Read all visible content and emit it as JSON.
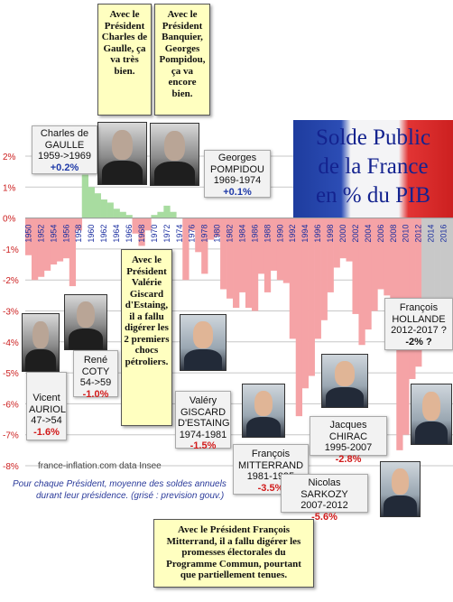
{
  "title_lines": [
    "Solde Public",
    "de la France",
    "en % du PIB"
  ],
  "source": "france-inflation.com  data Insee",
  "note_lines": [
    "Pour chaque Président, moyenne des soldes annuels",
    "durant leur présidence. (grisé : prevision gouv.)"
  ],
  "colors": {
    "positive": "#a8dca0",
    "negative": "#f5a3a6",
    "forecast": "#c8c8c8",
    "grid": "#c7c7c7",
    "axis_labels": "#cc2020",
    "year_labels": "#1b2fa0"
  },
  "yellow_notes": [
    "Avec le Président Charles de Gaulle, ça va très bien.",
    "Avec le Président Banquier, Georges Pompidou, ça va encore bien.",
    "Avec le Président Valérie Giscard d'Estaing, il a fallu digérer les 2 premiers chocs pétroliers.",
    "Avec le Président François Mitterrand, il a fallu digérer les promesses électorales du Programme Commun, pourtant que partiellement tenues."
  ],
  "presidents": [
    {
      "name_lines": [
        "Charles de",
        "GAULLE"
      ],
      "period": "1959->1969",
      "avg": "+0.2%",
      "sign": "pos"
    },
    {
      "name_lines": [
        "Georges",
        "POMPIDOU"
      ],
      "period": "1969-1974",
      "avg": "+0.1%",
      "sign": "pos"
    },
    {
      "name_lines": [
        "Vicent",
        "AURIOL"
      ],
      "period": "47->54",
      "avg": "-1.6%",
      "sign": "neg"
    },
    {
      "name_lines": [
        "René",
        "COTY"
      ],
      "period": "54->59",
      "avg": "-1.0%",
      "sign": "neg"
    },
    {
      "name_lines": [
        "Valéry",
        "GISCARD",
        "D'ESTAING"
      ],
      "period": "1974-1981",
      "avg": "-1.5%",
      "sign": "neg"
    },
    {
      "name_lines": [
        "François",
        "MITTERRAND"
      ],
      "period": "1981-1995",
      "avg": "-3.5%",
      "sign": "neg"
    },
    {
      "name_lines": [
        "Jacques CHIRAC"
      ],
      "period": "1995-2007",
      "avg": "-2.8%",
      "sign": "neg"
    },
    {
      "name_lines": [
        "Nicolas SARKOZY"
      ],
      "period": "2007-2012",
      "avg": "-5.6%",
      "sign": "neg"
    },
    {
      "name_lines": [
        "François",
        "HOLLANDE"
      ],
      "period": "2012-2017 ?",
      "avg": "-2% ?",
      "sign": "neg"
    }
  ],
  "chart_data": {
    "type": "bar",
    "title": "Solde Public de la France en % du PIB",
    "xlabel": "",
    "ylabel": "",
    "ylim": [
      -8,
      2
    ],
    "yticks": [
      2,
      1,
      0,
      -1,
      -2,
      -3,
      -4,
      -5,
      -6,
      -7,
      -8
    ],
    "ytick_labels": [
      "2%",
      "1%",
      "0%",
      "-1%",
      "-2%",
      "-3%",
      "-4%",
      "-5%",
      "-6%",
      "-7%",
      "-8%"
    ],
    "xtick_labels": [
      "1950",
      "1952",
      "1954",
      "1956",
      "1958",
      "1960",
      "1962",
      "1964",
      "1966",
      "1968",
      "1970",
      "1972",
      "1974",
      "1976",
      "1978",
      "1980",
      "1982",
      "1984",
      "1986",
      "1988",
      "1990",
      "1992",
      "1994",
      "1996",
      "1998",
      "2000",
      "2002",
      "2004",
      "2006",
      "2008",
      "2010",
      "2012",
      "2014",
      "2016"
    ],
    "grid": true,
    "categories": [
      1950,
      1951,
      1952,
      1953,
      1954,
      1955,
      1956,
      1957,
      1958,
      1959,
      1960,
      1961,
      1962,
      1963,
      1964,
      1965,
      1966,
      1967,
      1968,
      1969,
      1970,
      1971,
      1972,
      1973,
      1974,
      1975,
      1976,
      1977,
      1978,
      1979,
      1980,
      1981,
      1982,
      1983,
      1984,
      1985,
      1986,
      1987,
      1988,
      1989,
      1990,
      1991,
      1992,
      1993,
      1994,
      1995,
      1996,
      1997,
      1998,
      1999,
      2000,
      2001,
      2002,
      2003,
      2004,
      2005,
      2006,
      2007,
      2008,
      2009,
      2010,
      2011,
      2012,
      2013,
      2014,
      2015,
      2016,
      2017
    ],
    "values": [
      -1.2,
      -2.0,
      -1.9,
      -1.7,
      -1.5,
      -1.4,
      -1.3,
      -2.2,
      -0.4,
      1.4,
      1.0,
      0.8,
      0.6,
      0.5,
      0.3,
      0.2,
      0.1,
      -0.5,
      -0.9,
      -0.4,
      0.1,
      0.2,
      0.4,
      0.2,
      0.0,
      -2.0,
      -0.4,
      -1.1,
      -1.8,
      -0.7,
      -0.6,
      -2.3,
      -2.6,
      -2.9,
      -2.4,
      -2.9,
      -3.0,
      -1.8,
      -2.4,
      -1.7,
      -2.0,
      -2.1,
      -3.9,
      -6.4,
      -5.5,
      -5.1,
      -3.9,
      -3.3,
      -2.4,
      -1.6,
      -1.3,
      -1.4,
      -3.1,
      -4.1,
      -3.6,
      -3.0,
      -2.3,
      -2.5,
      -3.2,
      -7.5,
      -7.0,
      -5.2,
      -4.8,
      -4.1,
      -3.9,
      -3.5,
      -3.2,
      -2.8
    ],
    "forecast_from": 2013
  }
}
